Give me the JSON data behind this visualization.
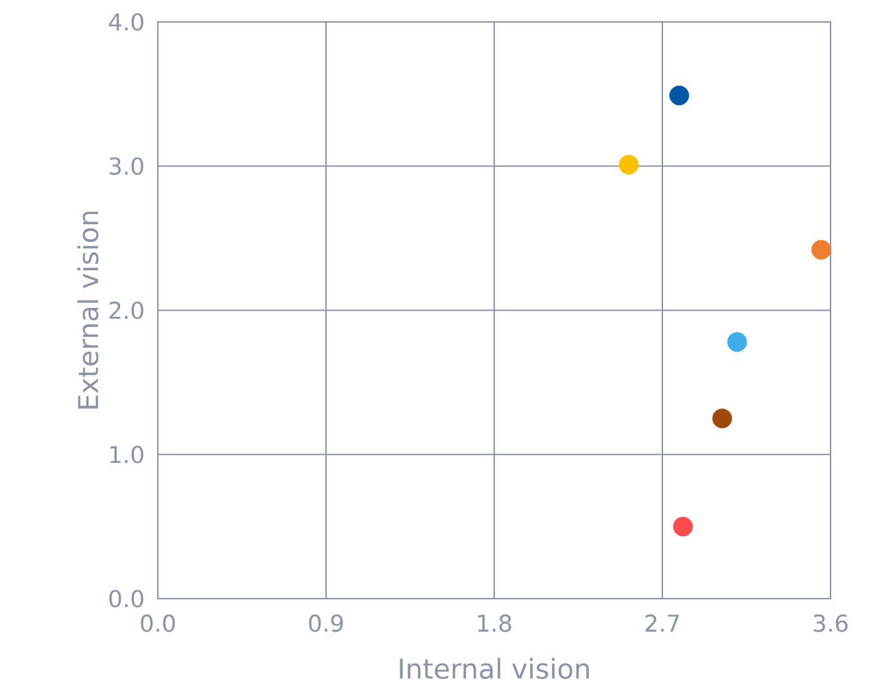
{
  "chart_data": {
    "type": "scatter",
    "xlabel": "Internal vision",
    "ylabel": "External vision",
    "x": [
      2.79,
      2.52,
      3.55,
      3.1,
      3.02,
      2.81
    ],
    "values": [
      3.49,
      3.01,
      2.42,
      1.78,
      1.25,
      0.5
    ],
    "colors": [
      "#0057a8",
      "#ffc000",
      "#ed7d31",
      "#3daee9",
      "#9c4a0c",
      "#ff4b4b"
    ],
    "xlim": [
      0,
      3.6
    ],
    "xticks": [
      {
        "value": 0,
        "label": "0.0"
      },
      0.9,
      1.8,
      2.7,
      3.6
    ],
    "ylim": [
      0,
      4.0
    ],
    "yticks": [
      {
        "value": 0,
        "label": "0.0"
      },
      {
        "value": 1,
        "label": "1.0"
      },
      {
        "value": 2,
        "label": "2.0"
      },
      {
        "value": 3,
        "label": "3.0"
      },
      {
        "value": 4,
        "label": "4.0"
      }
    ],
    "grid": true,
    "marker": "circle"
  }
}
